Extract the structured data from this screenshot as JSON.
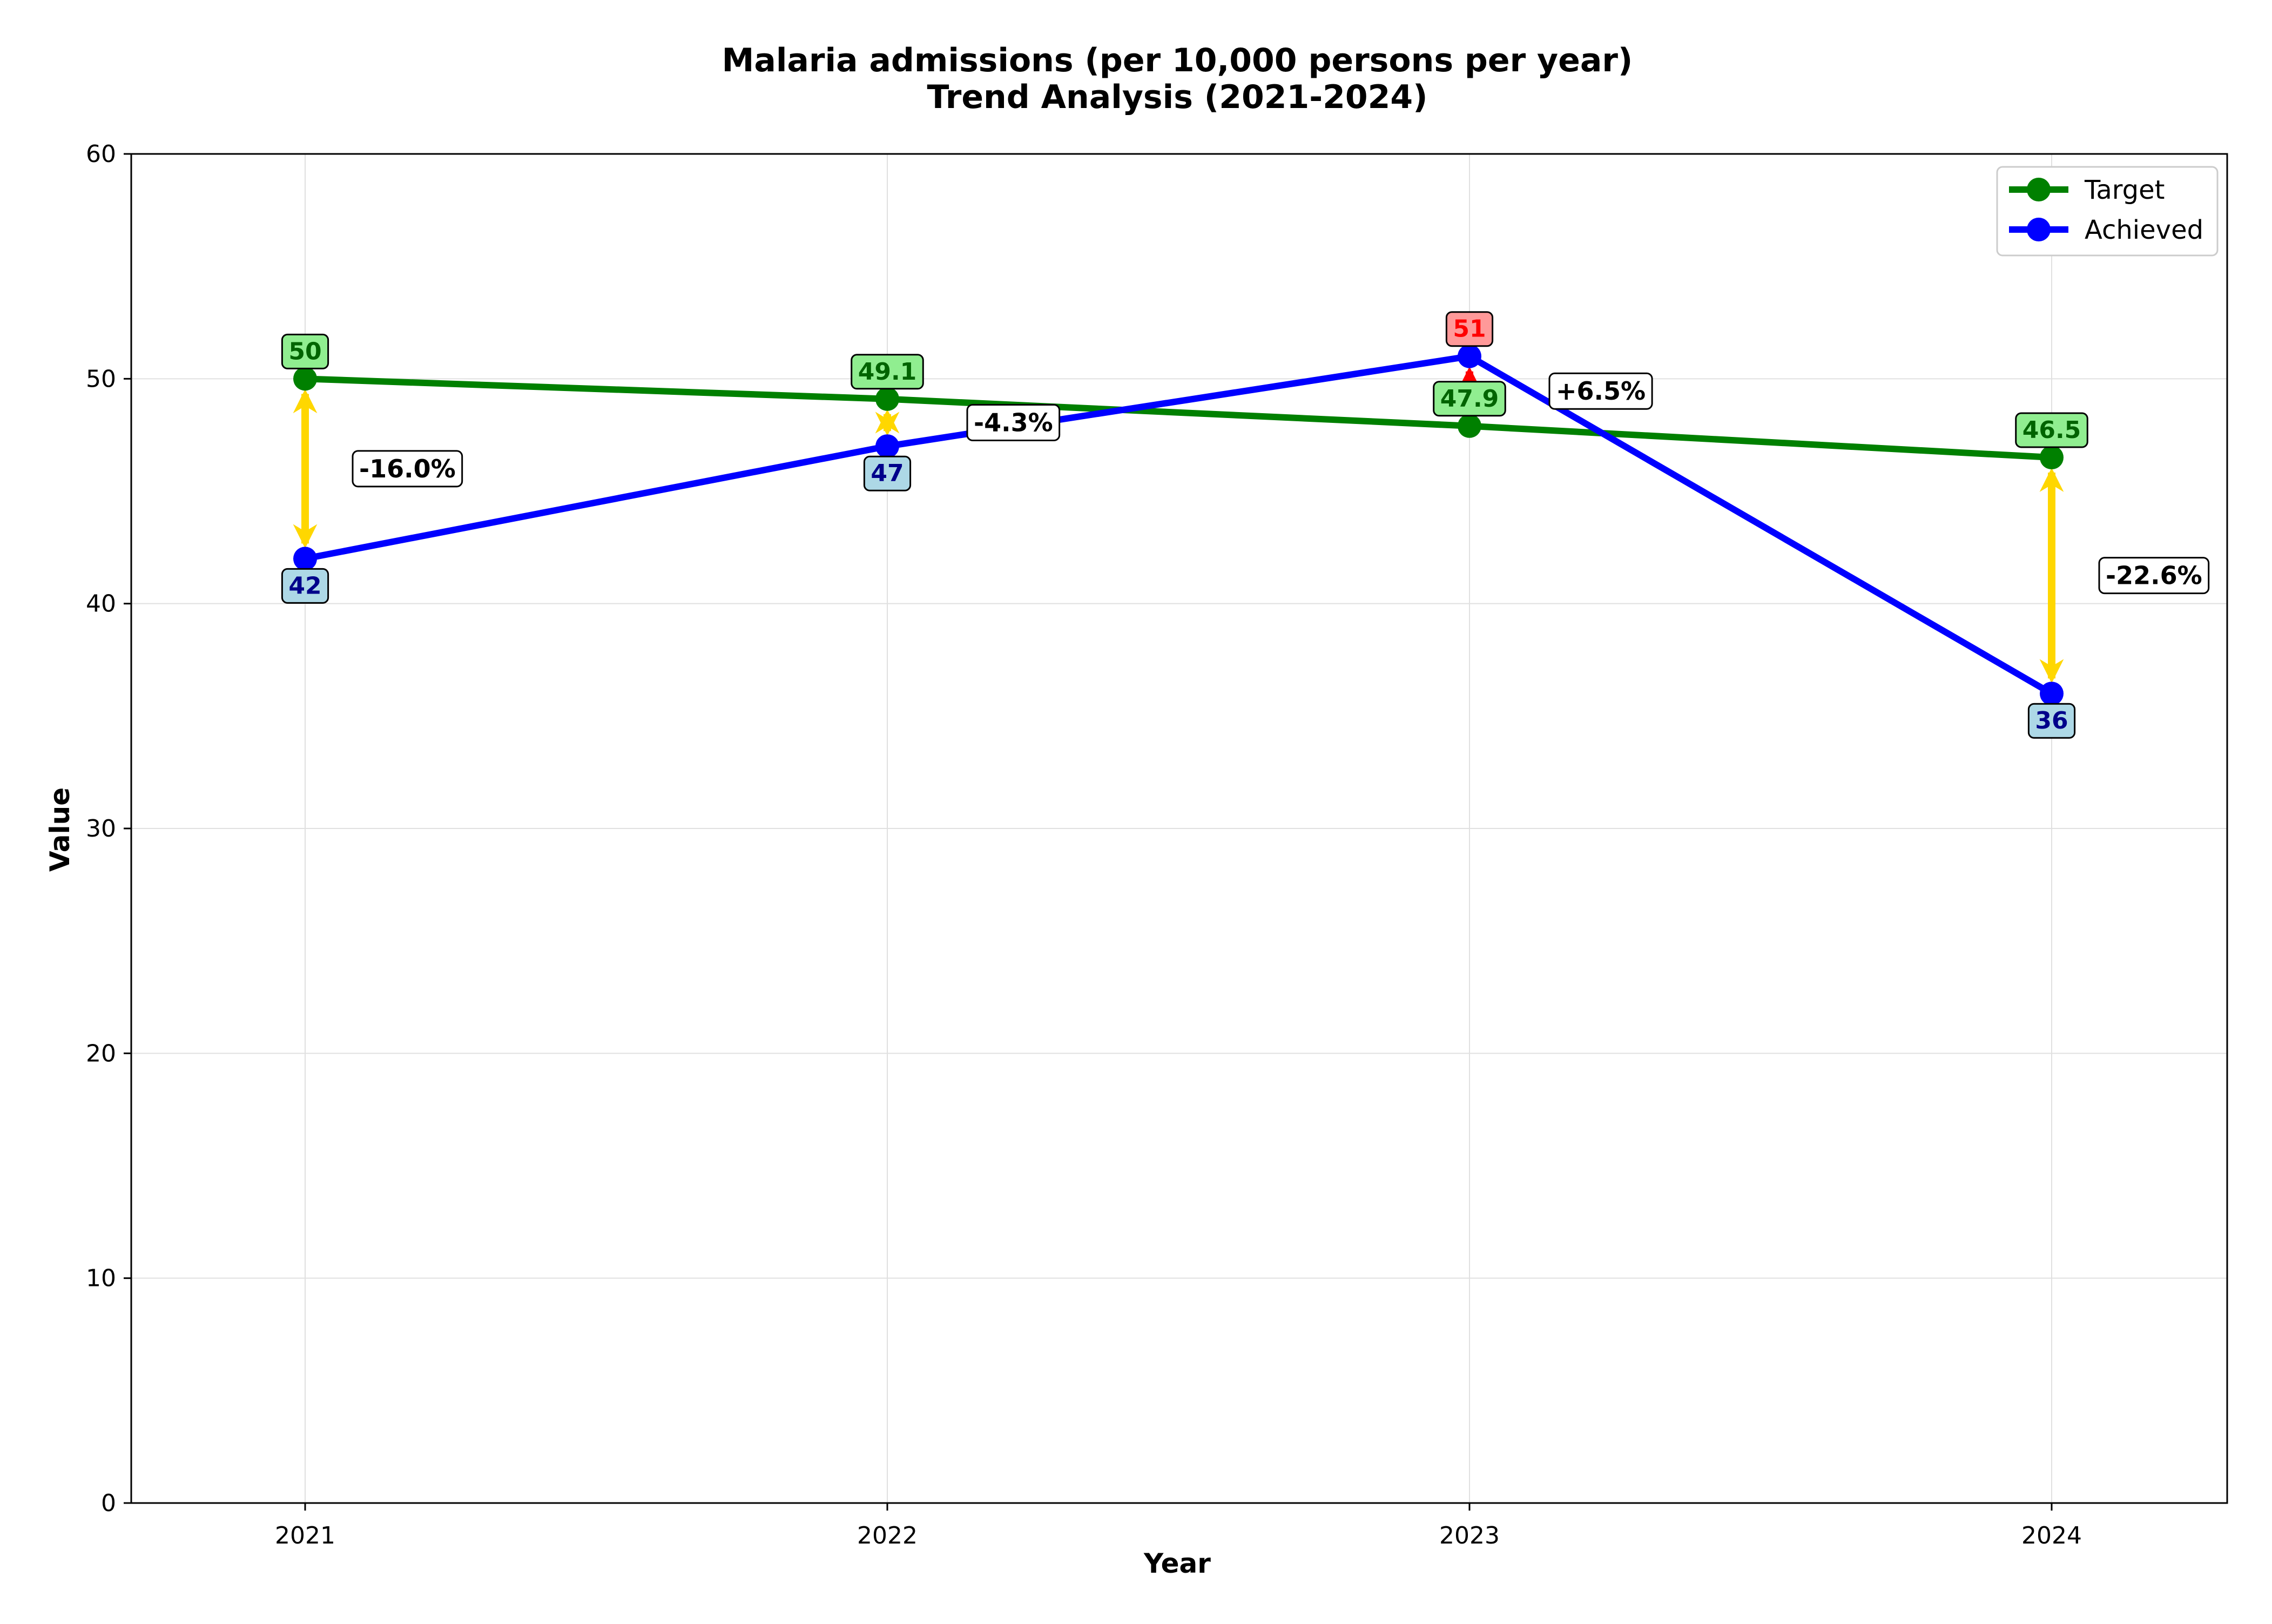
{
  "chart_data": {
    "type": "line",
    "title": "Malaria admissions (per 10,000 persons per year)",
    "subtitle": "Trend Analysis (2021-2024)",
    "xlabel": "Year",
    "ylabel": "Value",
    "categories": [
      "2021",
      "2022",
      "2023",
      "2024"
    ],
    "ylim": [
      0,
      60
    ],
    "yticks": [
      0,
      10,
      20,
      30,
      40,
      50,
      60
    ],
    "grid": true,
    "legend_position": "top-right",
    "series": [
      {
        "name": "Target",
        "values": [
          50,
          49.1,
          47.9,
          46.5
        ],
        "labels": [
          "50",
          "49.1",
          "47.9",
          "46.5"
        ],
        "color": "#008000",
        "label_bg": "#90ee90"
      },
      {
        "name": "Achieved",
        "values": [
          42,
          47,
          51,
          36
        ],
        "labels": [
          "42",
          "47",
          "51",
          "36"
        ],
        "color": "#0000ff",
        "label_bg": "#add8e6",
        "label_text_color": "#00008b",
        "exceed_label_bg": "#ff9999",
        "exceed_label_text_color": "#ff0000"
      }
    ],
    "gap_percentages": [
      "-16.0%",
      "-4.3%",
      "+6.5%",
      "-22.6%"
    ],
    "gap_arrow_colors": {
      "below_target": "#ffd700",
      "above_target": "#ff0000"
    }
  }
}
